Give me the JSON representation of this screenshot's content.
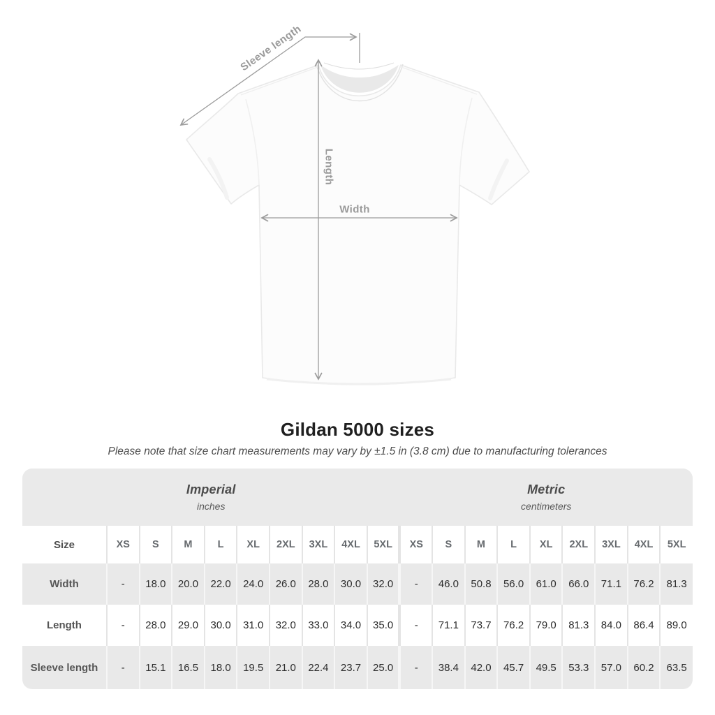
{
  "figure": {
    "sleeve_label": "Sleeve length",
    "length_label": "Length",
    "width_label": "Width"
  },
  "title": "Gildan 5000 sizes",
  "subtitle": "Please note that size chart measurements may vary by ±1.5 in (3.8 cm) due to manufacturing tolerances",
  "chart_data": {
    "type": "table",
    "groups": [
      {
        "label": "Imperial",
        "sublabel": "inches"
      },
      {
        "label": "Metric",
        "sublabel": "centimeters"
      }
    ],
    "size_header": "Size",
    "sizes": [
      "XS",
      "S",
      "M",
      "L",
      "XL",
      "2XL",
      "3XL",
      "4XL",
      "5XL"
    ],
    "rows": [
      {
        "label": "Width",
        "imperial": [
          "-",
          "18.0",
          "20.0",
          "22.0",
          "24.0",
          "26.0",
          "28.0",
          "30.0",
          "32.0"
        ],
        "metric": [
          "-",
          "46.0",
          "50.8",
          "56.0",
          "61.0",
          "66.0",
          "71.1",
          "76.2",
          "81.3"
        ]
      },
      {
        "label": "Length",
        "imperial": [
          "-",
          "28.0",
          "29.0",
          "30.0",
          "31.0",
          "32.0",
          "33.0",
          "34.0",
          "35.0"
        ],
        "metric": [
          "-",
          "71.1",
          "73.7",
          "76.2",
          "79.0",
          "81.3",
          "84.0",
          "86.4",
          "89.0"
        ]
      },
      {
        "label": "Sleeve length",
        "imperial": [
          "-",
          "15.1",
          "16.5",
          "18.0",
          "19.5",
          "21.0",
          "22.4",
          "23.7",
          "25.0"
        ],
        "metric": [
          "-",
          "38.4",
          "42.0",
          "45.7",
          "49.5",
          "53.3",
          "57.0",
          "60.2",
          "63.5"
        ]
      }
    ]
  },
  "colors": {
    "measure_line": "#9b9b9b",
    "measure_text": "#9a9a9a",
    "band_gray": "#eaeaea",
    "row_gray": "#e9e9e9",
    "title_text": "#1f1f1f",
    "subtitle_text": "#4c4c4c"
  }
}
